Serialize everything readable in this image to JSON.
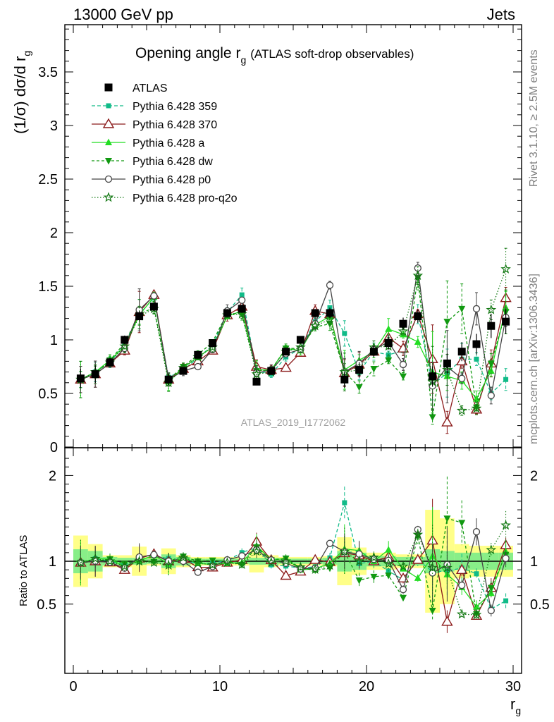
{
  "header": {
    "left": "13000 GeV pp",
    "right": "Jets"
  },
  "side": {
    "rivet": "Rivet 3.1.10, ≥ 2.5M events",
    "mcplots": "mcplots.cern.ch [arXiv:1306.3436]"
  },
  "labels": {
    "analysis": "ATLAS_2019_I1772062",
    "title_main": "Opening angle r",
    "title_sub": "g",
    "title_rest": "(ATLAS soft-drop observables)",
    "ylabel_main": "(1/σ) dσ/d r",
    "ylabel_sub": "g",
    "ratio_ylabel": "Ratio to ATLAS",
    "xlabel_main": "r",
    "xlabel_sub": "g"
  },
  "colors": {
    "atlas": "#000000",
    "p359": "#10bb88",
    "p370": "#8b1a1a",
    "pa": "#22dd22",
    "pdw": "#119911",
    "pp0": "#444444",
    "pq2o": "#117711",
    "band_yellow": "#ffff88",
    "band_green": "#88ee88"
  },
  "chart_data": {
    "type": "scatter",
    "x_range": [
      -0.5,
      30.5
    ],
    "main_y_range": [
      0,
      3.95
    ],
    "ratio_y_range": [
      0.35,
      2.3
    ],
    "x_ticks": [
      "0",
      "10",
      "20",
      "30"
    ],
    "main_y_ticks": [
      "0",
      "0.5",
      "1",
      "1.5",
      "2",
      "2.5",
      "3",
      "3.5"
    ],
    "ratio_y_ticks": [
      "0.5",
      "1",
      "2"
    ],
    "x": [
      0.5,
      1.5,
      2.5,
      3.5,
      4.5,
      5.5,
      6.5,
      7.5,
      8.5,
      9.5,
      10.5,
      11.5,
      12.5,
      13.5,
      14.5,
      15.5,
      16.5,
      17.5,
      18.5,
      19.5,
      20.5,
      21.5,
      22.5,
      23.5,
      24.5,
      25.5,
      26.5,
      27.5,
      28.5,
      29.5
    ],
    "atlas": {
      "name": "ATLAS",
      "values": [
        0.64,
        0.68,
        0.79,
        1.0,
        1.22,
        1.31,
        0.63,
        0.71,
        0.86,
        0.97,
        1.25,
        1.29,
        0.61,
        0.71,
        0.89,
        1.0,
        1.25,
        1.25,
        0.63,
        0.72,
        0.89,
        0.97,
        1.15,
        1.22,
        0.66,
        0.78,
        0.89,
        0.96,
        1.13,
        1.17
      ],
      "rel_err_green": [
        0.14,
        0.12,
        0.05,
        0.04,
        0.04,
        0.03,
        0.08,
        0.05,
        0.03,
        0.03,
        0.03,
        0.03,
        0.04,
        0.04,
        0.03,
        0.03,
        0.03,
        0.04,
        0.12,
        0.1,
        0.06,
        0.06,
        0.05,
        0.05,
        0.14,
        0.12,
        0.1,
        0.1,
        0.1,
        0.1
      ],
      "rel_err_yellow": [
        0.3,
        0.2,
        0.07,
        0.07,
        0.17,
        0.05,
        0.15,
        0.07,
        0.05,
        0.05,
        0.05,
        0.05,
        0.13,
        0.07,
        0.05,
        0.05,
        0.05,
        0.06,
        0.28,
        0.16,
        0.1,
        0.1,
        0.08,
        0.08,
        0.6,
        0.5,
        0.2,
        0.18,
        0.18,
        0.18
      ]
    },
    "series": [
      {
        "key": "p359",
        "name": "Pythia 6.428 359",
        "dash": "5,3",
        "marker": "square-small",
        "values": [
          0.63,
          0.7,
          0.79,
          0.96,
          1.24,
          1.39,
          0.65,
          0.72,
          0.83,
          0.95,
          1.26,
          1.42,
          0.71,
          0.68,
          0.84,
          0.92,
          1.17,
          1.3,
          1.06,
          0.7,
          0.89,
          0.86,
          0.9,
          1.24,
          0.58,
          0.69,
          0.82,
          0.82,
          0.5,
          0.63
        ]
      },
      {
        "key": "p370",
        "name": "Pythia 6.428 370",
        "dash": "",
        "marker": "triangle-open",
        "values": [
          0.63,
          0.68,
          0.78,
          0.9,
          1.26,
          1.42,
          0.63,
          0.73,
          0.8,
          0.9,
          1.23,
          1.31,
          0.75,
          0.72,
          0.74,
          0.88,
          1.27,
          1.24,
          0.69,
          0.77,
          0.89,
          1.02,
          0.92,
          1.24,
          0.82,
          0.23,
          0.8,
          0.35,
          0.78,
          1.39
        ]
      },
      {
        "key": "pa",
        "name": "Pythia 6.428 a",
        "dash": "",
        "marker": "triangle-up-filled",
        "values": [
          0.63,
          0.7,
          0.81,
          0.94,
          1.23,
          1.4,
          0.61,
          0.74,
          0.84,
          0.93,
          1.22,
          1.27,
          0.72,
          0.72,
          0.92,
          0.9,
          1.14,
          1.22,
          0.72,
          0.81,
          0.89,
          1.1,
          1.05,
          0.98,
          0.7,
          0.66,
          0.62,
          0.45,
          0.71,
          1.3
        ]
      },
      {
        "key": "pdw",
        "name": "Pythia 6.428 dw",
        "dash": "4,3",
        "marker": "triangle-down-filled",
        "values": [
          0.63,
          0.68,
          0.81,
          0.97,
          1.24,
          1.3,
          0.63,
          0.75,
          0.86,
          0.98,
          1.25,
          1.24,
          0.71,
          0.72,
          0.92,
          0.92,
          1.12,
          1.15,
          0.7,
          0.56,
          0.73,
          0.81,
          0.66,
          1.58,
          0.28,
          1.17,
          1.29,
          0.37,
          0.78,
          1.26
        ]
      },
      {
        "key": "pp0",
        "name": "Pythia 6.428 p0",
        "dash": "",
        "marker": "circle-open",
        "values": [
          0.63,
          0.68,
          0.78,
          0.92,
          1.28,
          1.41,
          0.63,
          0.71,
          0.75,
          0.91,
          1.27,
          1.37,
          0.69,
          0.72,
          0.87,
          0.91,
          1.15,
          1.51,
          0.7,
          0.78,
          0.91,
          0.98,
          0.77,
          1.67,
          0.57,
          0.75,
          0.64,
          1.29,
          0.48,
          1.21
        ]
      },
      {
        "key": "pq2o",
        "name": "Pythia 6.428 pro-q2o",
        "dash": "1.5,2.5",
        "marker": "star-open",
        "values": [
          0.63,
          0.7,
          0.79,
          0.94,
          1.22,
          1.29,
          0.6,
          0.74,
          0.84,
          0.93,
          1.23,
          1.24,
          0.68,
          0.7,
          0.89,
          0.93,
          1.13,
          1.19,
          0.7,
          0.72,
          0.93,
          0.94,
          1.08,
          1.6,
          0.61,
          0.72,
          0.34,
          0.36,
          1.28,
          1.66
        ]
      }
    ]
  }
}
